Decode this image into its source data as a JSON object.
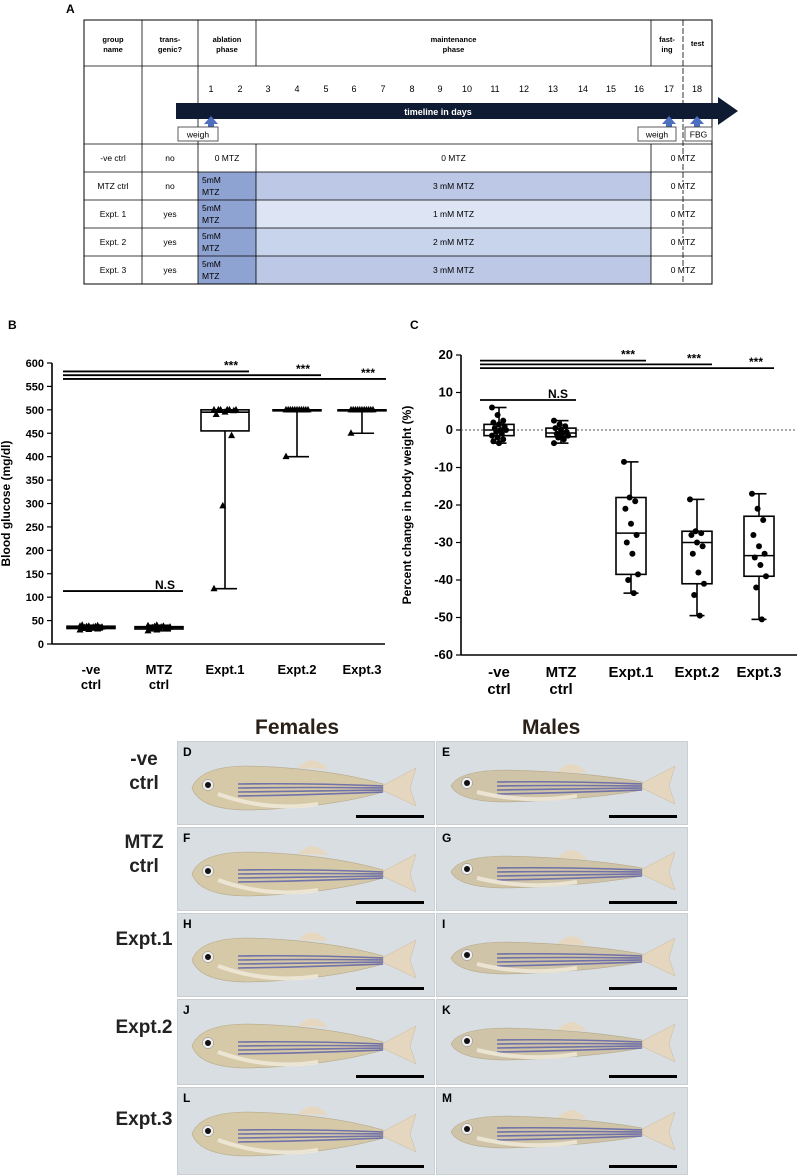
{
  "panel_labels": {
    "A": "A",
    "B": "B",
    "C": "C",
    "D": "D",
    "E": "E",
    "F": "F",
    "G": "G",
    "H": "H",
    "I": "I",
    "J": "J",
    "K": "K",
    "L": "L",
    "M": "M"
  },
  "tableA": {
    "headers": {
      "group": [
        "group",
        "name"
      ],
      "transgenic": [
        "trans-",
        "genic?"
      ],
      "ablation": [
        "ablation",
        "phase"
      ],
      "maintenance": [
        "maintenance",
        "phase"
      ],
      "fasting": [
        "fast-",
        "ing"
      ],
      "test": "test"
    },
    "days": [
      "1",
      "2",
      "3",
      "4",
      "5",
      "6",
      "7",
      "8",
      "9",
      "10",
      "11",
      "12",
      "13",
      "14",
      "15",
      "16",
      "17",
      "18"
    ],
    "timeline_label": "timeline in days",
    "weigh_label": "weigh",
    "fbg_label": "FBG",
    "rows": [
      {
        "name": "-ve ctrl",
        "transgenic": "no",
        "ablation": "0 MTZ",
        "maintenance": "0 MTZ",
        "test": "0 MTZ"
      },
      {
        "name": "MTZ ctrl",
        "transgenic": "no",
        "ablation": [
          "5mM",
          "MTZ"
        ],
        "maintenance": "3 mM MTZ",
        "test": "0 MTZ"
      },
      {
        "name": "Expt. 1",
        "transgenic": "yes",
        "ablation": [
          "5mM",
          "MTZ"
        ],
        "maintenance": "1 mM MTZ",
        "test": "0 MTZ"
      },
      {
        "name": "Expt. 2",
        "transgenic": "yes",
        "ablation": [
          "5mM",
          "MTZ"
        ],
        "maintenance": "2 mM MTZ",
        "test": "0 MTZ"
      },
      {
        "name": "Expt. 3",
        "transgenic": "yes",
        "ablation": [
          "5mM",
          "MTZ"
        ],
        "maintenance": "3 mM MTZ",
        "test": "0 MTZ"
      }
    ],
    "colors": {
      "ablation": "#8fa3d3",
      "maint_3mM": "#bcc8e6",
      "maint_2mM": "#c8d3ec",
      "maint_1mM": "#dde4f4",
      "arrow": "#0f1a33",
      "weigh_arrow": "#4d6fbf"
    }
  },
  "chart_data": [
    {
      "type": "box",
      "ylabel": "Blood glucose (mg/dl)",
      "ylim": [
        0,
        600
      ],
      "yticks": [
        0,
        50,
        100,
        150,
        200,
        250,
        300,
        350,
        400,
        450,
        500,
        550,
        600
      ],
      "categories": [
        [
          "-ve",
          "ctrl"
        ],
        [
          "MTZ",
          "ctrl"
        ],
        [
          "Expt.1"
        ],
        [
          "Expt.2"
        ],
        [
          "Expt.3"
        ]
      ],
      "boxes": [
        {
          "min": 30,
          "q1": 33,
          "median": 36,
          "q3": 38,
          "max": 40
        },
        {
          "min": 28,
          "q1": 32,
          "median": 35,
          "q3": 37,
          "max": 40
        },
        {
          "min": 118,
          "q1": 455,
          "median": 495,
          "q3": 500,
          "max": 500
        },
        {
          "min": 400,
          "q1": 500,
          "median": 500,
          "q3": 500,
          "max": 500
        },
        {
          "min": 450,
          "q1": 500,
          "median": 500,
          "q3": 500,
          "max": 500
        }
      ],
      "points": [
        [
          30,
          31,
          32,
          33,
          34,
          35,
          35,
          36,
          36,
          37,
          37,
          38,
          38,
          39,
          40
        ],
        [
          28,
          30,
          32,
          33,
          34,
          34,
          35,
          36,
          36,
          37,
          38,
          39,
          40
        ],
        [
          118,
          295,
          445,
          490,
          495,
          498,
          500,
          500,
          500,
          500,
          500,
          500
        ],
        [
          400,
          500,
          500,
          500,
          500,
          500,
          500,
          500,
          500,
          500,
          500,
          500
        ],
        [
          450,
          500,
          500,
          500,
          500,
          500,
          500,
          500,
          500,
          500,
          500,
          500
        ]
      ],
      "significance": [
        {
          "from": 0,
          "to": 1,
          "y": 113,
          "label": "N.S"
        },
        {
          "from": 0,
          "to": 2,
          "y": 582,
          "label": "***"
        },
        {
          "from": 0,
          "to": 3,
          "y": 574,
          "label": "***"
        },
        {
          "from": 0,
          "to": 4,
          "y": 566,
          "label": "***"
        }
      ]
    },
    {
      "type": "box",
      "ylabel": "Percent change in body weight (%)",
      "ylim": [
        -60,
        20
      ],
      "yticks": [
        -60,
        -50,
        -40,
        -30,
        -20,
        -10,
        0,
        10,
        20
      ],
      "zero_line": "dotted",
      "categories": [
        [
          "-ve",
          "ctrl"
        ],
        [
          "MTZ",
          "ctrl"
        ],
        [
          "Expt.1"
        ],
        [
          "Expt.2"
        ],
        [
          "Expt.3"
        ]
      ],
      "boxes": [
        {
          "min": -3.5,
          "q1": -1.5,
          "median": 0,
          "q3": 1.5,
          "max": 6
        },
        {
          "min": -3.5,
          "q1": -1.8,
          "median": -0.8,
          "q3": 0.5,
          "max": 2.5
        },
        {
          "min": -43.5,
          "q1": -38.5,
          "median": -27.5,
          "q3": -18,
          "max": -8.5
        },
        {
          "min": -49.5,
          "q1": -41,
          "median": -30,
          "q3": -27,
          "max": -18.5
        },
        {
          "min": -50.5,
          "q1": -39,
          "median": -33.5,
          "q3": -23,
          "max": -17
        }
      ],
      "points": [
        [
          6,
          4,
          2.5,
          2,
          1.5,
          1,
          0.5,
          0,
          0,
          -0.5,
          -1,
          -1.5,
          -2,
          -2.5,
          -3,
          -3.5
        ],
        [
          2.5,
          1.5,
          1,
          0.5,
          0,
          -0.5,
          -1,
          -1,
          -1.5,
          -2,
          -2.5,
          -3.5
        ],
        [
          -8.5,
          -18,
          -19,
          -21,
          -25,
          -28,
          -30,
          -33,
          -38.5,
          -40,
          -43.5
        ],
        [
          -18.5,
          -27,
          -27.5,
          -28,
          -30,
          -31,
          -33,
          -38,
          -41,
          -44,
          -49.5
        ],
        [
          -17,
          -21,
          -24,
          -28,
          -31,
          -33,
          -34,
          -36,
          -39,
          -42,
          -50.5
        ]
      ],
      "significance": [
        {
          "from": 0,
          "to": 1,
          "y": 8,
          "label": "N.S"
        },
        {
          "from": 0,
          "to": 2,
          "y": 18.5,
          "label": "***"
        },
        {
          "from": 0,
          "to": 3,
          "y": 17.5,
          "label": "***"
        },
        {
          "from": 0,
          "to": 4,
          "y": 16.5,
          "label": "***"
        }
      ]
    }
  ],
  "photos": {
    "col_headers": [
      "Females",
      "Males"
    ],
    "row_labels": [
      [
        "-ve",
        "ctrl"
      ],
      [
        "MTZ",
        "ctrl"
      ],
      [
        "Expt.1"
      ],
      [
        "Expt.2"
      ],
      [
        "Expt.3"
      ]
    ],
    "female_panels": [
      "D",
      "F",
      "H",
      "J",
      "L"
    ],
    "male_panels": [
      "E",
      "G",
      "I",
      "K",
      "M"
    ]
  }
}
